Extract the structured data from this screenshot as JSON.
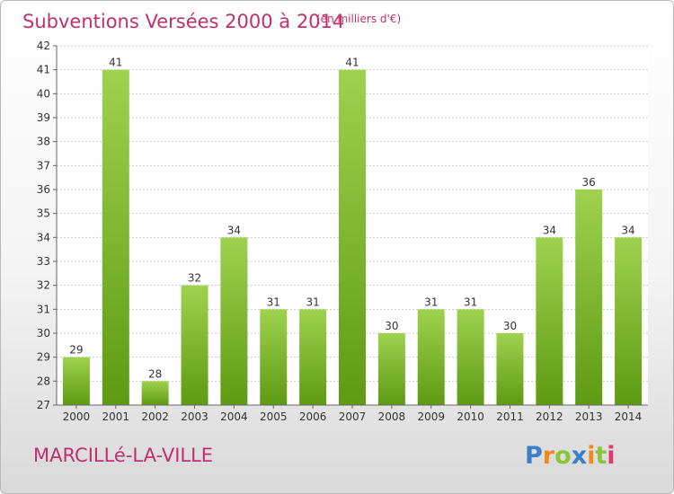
{
  "chart_data": {
    "type": "bar",
    "title": "Subventions Versées 2000 à 2014",
    "subtitle": "(en milliers d'€)",
    "categories": [
      "2000",
      "2001",
      "2002",
      "2003",
      "2004",
      "2005",
      "2006",
      "2007",
      "2008",
      "2009",
      "2010",
      "2011",
      "2012",
      "2013",
      "2014"
    ],
    "values": [
      29,
      41,
      28,
      32,
      34,
      31,
      31,
      41,
      30,
      31,
      31,
      30,
      34,
      36,
      34
    ],
    "ylim": [
      27,
      42
    ],
    "yticks": [
      27,
      28,
      29,
      30,
      31,
      32,
      33,
      34,
      35,
      36,
      37,
      38,
      39,
      40,
      41,
      42
    ],
    "grid": "horizontal-dotted",
    "bar_color_top": "#9fd24e",
    "bar_color_bottom": "#5e9a12"
  },
  "commune": "MARCILLé-LA-VILLE",
  "logo": {
    "text": "Proxiti",
    "letters": [
      "P",
      "r",
      "o",
      "x",
      "i",
      "t",
      "i"
    ],
    "colors": [
      "#3a7fc9",
      "#f08a1c",
      "#8cc43c",
      "#3a7fc9",
      "#f08a1c",
      "#8cc43c",
      "#e03a6a"
    ]
  },
  "colors": {
    "accent": "#c0306a"
  }
}
